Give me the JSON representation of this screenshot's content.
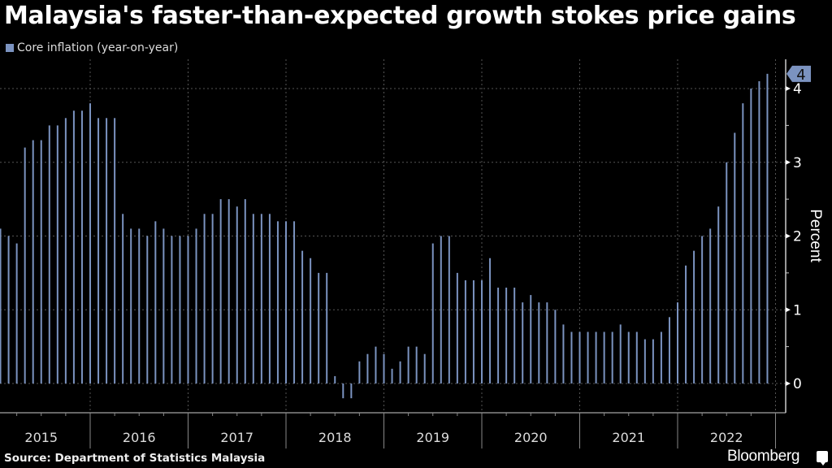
{
  "chart_data": {
    "type": "bar",
    "title": "Malaysia's faster-than-expected growth stokes price gains",
    "legend": [
      {
        "label": "Core inflation (year-on-year)",
        "color": "#7b93c0"
      }
    ],
    "legend_position": "top-left",
    "xlabel": "",
    "ylabel": "Percent",
    "ylim": [
      -0.4,
      4.4
    ],
    "yticks": [
      0,
      1,
      2,
      3,
      4
    ],
    "x_year_labels": [
      "2015",
      "2016",
      "2017",
      "2018",
      "2019",
      "2020",
      "2021",
      "2022"
    ],
    "x_start": "2015-02",
    "x_end": "2022-12",
    "grid": true,
    "last_value_tag": "4",
    "series": [
      {
        "name": "Core inflation (year-on-year)",
        "color": "#7b93c0",
        "values": [
          2.1,
          2.0,
          1.9,
          3.2,
          3.3,
          3.3,
          3.5,
          3.5,
          3.6,
          3.7,
          3.7,
          3.8,
          3.6,
          3.6,
          3.6,
          2.3,
          2.1,
          2.1,
          2.0,
          2.2,
          2.1,
          2.0,
          2.0,
          2.0,
          2.1,
          2.3,
          2.3,
          2.5,
          2.5,
          2.4,
          2.5,
          2.3,
          2.3,
          2.3,
          2.2,
          2.2,
          2.2,
          1.8,
          1.7,
          1.5,
          1.5,
          0.1,
          -0.2,
          -0.2,
          0.3,
          0.4,
          0.5,
          0.4,
          0.2,
          0.3,
          0.5,
          0.5,
          0.4,
          1.9,
          2.0,
          2.0,
          1.5,
          1.4,
          1.4,
          1.4,
          1.7,
          1.3,
          1.3,
          1.3,
          1.1,
          1.2,
          1.1,
          1.1,
          1.0,
          0.8,
          0.7,
          0.7,
          0.7,
          0.7,
          0.7,
          0.7,
          0.8,
          0.7,
          0.7,
          0.6,
          0.6,
          0.7,
          0.9,
          1.1,
          1.6,
          1.8,
          2.0,
          2.1,
          2.4,
          3.0,
          3.4,
          3.8,
          4.0,
          4.1,
          4.2
        ]
      }
    ]
  },
  "source": "Source: Department of Statistics Malaysia",
  "brand": "Bloomberg",
  "brand_icon": "bloomberg-chat-icon"
}
